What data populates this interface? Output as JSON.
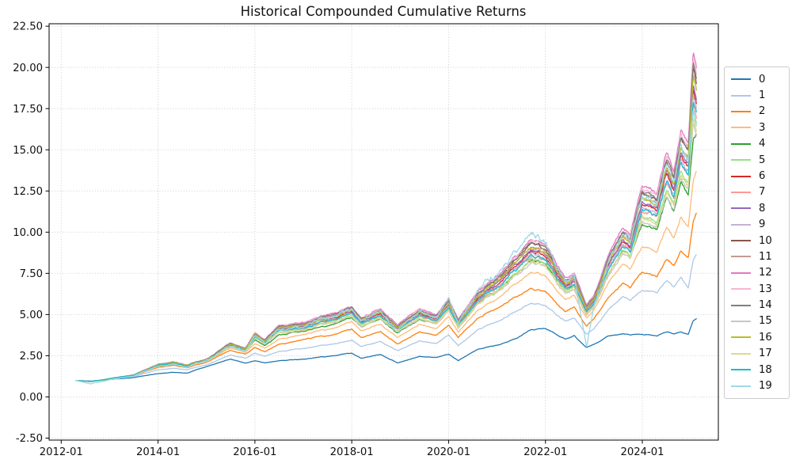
{
  "title": "Historical Compounded Cumulative Returns",
  "chart_data": {
    "type": "line",
    "title": "Historical Compounded Cumulative Returns",
    "xlabel": "",
    "ylabel": "",
    "grid": "dotted",
    "grid_color": "#c8c8c8",
    "spine_color": "#000000",
    "background_color": "#ffffff",
    "legend_position": "outside-right",
    "legend_labels": [
      "0",
      "1",
      "2",
      "3",
      "4",
      "5",
      "6",
      "7",
      "8",
      "9",
      "10",
      "11",
      "12",
      "13",
      "14",
      "15",
      "16",
      "17",
      "18",
      "19"
    ],
    "x_ticks": [
      {
        "label": "2012-01",
        "year": 2012
      },
      {
        "label": "2014-01",
        "year": 2014
      },
      {
        "label": "2016-01",
        "year": 2016
      },
      {
        "label": "2018-01",
        "year": 2018
      },
      {
        "label": "2020-01",
        "year": 2020
      },
      {
        "label": "2022-01",
        "year": 2022
      },
      {
        "label": "2024-01",
        "year": 2024
      }
    ],
    "y_ticks": [
      {
        "label": "-2.50",
        "value": -2.5
      },
      {
        "label": "0.00",
        "value": 0.0
      },
      {
        "label": "2.50",
        "value": 2.5
      },
      {
        "label": "5.00",
        "value": 5.0
      },
      {
        "label": "7.50",
        "value": 7.5
      },
      {
        "label": "10.00",
        "value": 10.0
      },
      {
        "label": "12.50",
        "value": 12.5
      },
      {
        "label": "15.00",
        "value": 15.0
      },
      {
        "label": "17.50",
        "value": 17.5
      },
      {
        "label": "20.00",
        "value": 20.0
      },
      {
        "label": "22.50",
        "value": 22.5
      }
    ],
    "xlim_years": [
      2011.75,
      2025.57
    ],
    "ylim": [
      -2.62,
      22.65
    ],
    "data_start_year": 2012.3,
    "data_end_year": 2025.12,
    "time_grid_years": [
      2012.3,
      2012.6,
      2013.0,
      2013.5,
      2014.0,
      2014.3,
      2014.6,
      2015.0,
      2015.5,
      2015.8,
      2016.0,
      2016.2,
      2016.5,
      2017.0,
      2017.5,
      2018.0,
      2018.2,
      2018.6,
      2018.95,
      2019.4,
      2019.75,
      2020.0,
      2020.2,
      2020.6,
      2021.0,
      2021.4,
      2021.7,
      2022.0,
      2022.4,
      2022.6,
      2022.85,
      2023.0,
      2023.3,
      2023.6,
      2023.75,
      2024.0,
      2024.3,
      2024.5,
      2024.65,
      2024.8,
      2024.95,
      2025.05,
      2025.12
    ],
    "series": [
      {
        "label": "0",
        "color": "#1f77b4",
        "volatility": 0.01,
        "end_value": 4.7,
        "values": [
          1.0,
          0.97,
          1.05,
          1.18,
          1.42,
          1.5,
          1.45,
          1.85,
          2.3,
          2.05,
          2.2,
          2.05,
          2.2,
          2.3,
          2.45,
          2.65,
          2.35,
          2.55,
          2.05,
          2.45,
          2.4,
          2.6,
          2.2,
          2.9,
          3.15,
          3.55,
          4.1,
          4.15,
          3.5,
          3.7,
          3.0,
          3.15,
          3.7,
          3.85,
          3.75,
          3.8,
          3.7,
          3.95,
          3.85,
          3.95,
          3.8,
          4.6,
          4.7
        ]
      },
      {
        "label": "1",
        "color": "#aec7e8",
        "volatility": 0.011,
        "end_value": 8.6,
        "values": [
          1.0,
          0.95,
          1.07,
          1.25,
          1.65,
          1.75,
          1.65,
          1.95,
          2.55,
          2.35,
          2.65,
          2.45,
          2.75,
          2.95,
          3.15,
          3.45,
          3.05,
          3.35,
          2.8,
          3.4,
          3.25,
          3.8,
          3.1,
          4.1,
          4.6,
          5.2,
          5.7,
          5.55,
          4.6,
          4.8,
          3.8,
          4.1,
          5.3,
          6.1,
          5.85,
          6.5,
          6.3,
          7.1,
          6.7,
          7.3,
          6.6,
          8.3,
          8.6
        ]
      },
      {
        "label": "2",
        "color": "#ff7f0e",
        "volatility": 0.012,
        "end_value": 11.1,
        "values": [
          1.0,
          0.94,
          1.08,
          1.3,
          1.8,
          1.92,
          1.78,
          2.1,
          2.85,
          2.6,
          3.0,
          2.75,
          3.2,
          3.5,
          3.7,
          4.1,
          3.6,
          3.95,
          3.2,
          3.95,
          3.75,
          4.4,
          3.6,
          4.8,
          5.4,
          6.1,
          6.6,
          6.4,
          5.2,
          5.45,
          4.3,
          4.7,
          6.0,
          6.9,
          6.6,
          7.6,
          7.3,
          8.4,
          8.0,
          8.9,
          8.4,
          10.6,
          11.1
        ]
      },
      {
        "label": "3",
        "color": "#ffbb78",
        "volatility": 0.013,
        "end_value": 13.6,
        "values": [
          1.0,
          0.94,
          1.09,
          1.32,
          1.86,
          1.99,
          1.83,
          2.15,
          2.98,
          2.7,
          3.25,
          2.95,
          3.5,
          3.8,
          4.05,
          4.55,
          4.0,
          4.4,
          3.6,
          4.4,
          4.15,
          4.9,
          3.95,
          5.3,
          6.0,
          6.9,
          7.55,
          7.35,
          5.9,
          6.15,
          4.8,
          5.25,
          6.9,
          8.1,
          7.75,
          9.2,
          8.8,
          10.3,
          9.7,
          11.0,
          10.3,
          13.0,
          13.6
        ]
      },
      {
        "label": "4",
        "color": "#2ca02c",
        "volatility": 0.014,
        "end_value": 15.8,
        "values": [
          1.0,
          0.93,
          1.09,
          1.33,
          1.9,
          2.04,
          1.86,
          2.2,
          3.08,
          2.78,
          3.45,
          3.1,
          3.75,
          4.0,
          4.3,
          4.85,
          4.25,
          4.7,
          3.85,
          4.7,
          4.45,
          5.3,
          4.2,
          5.7,
          6.5,
          7.5,
          8.3,
          8.05,
          6.4,
          6.7,
          5.1,
          5.6,
          7.5,
          8.9,
          8.5,
          10.6,
          10.1,
          12.1,
          11.3,
          13.1,
          12.2,
          15.5,
          15.8
        ]
      },
      {
        "label": "5",
        "color": "#98df8a",
        "volatility": 0.018,
        "derived_from": "12",
        "exponent": 0.94,
        "end_value": 16.4
      },
      {
        "label": "6",
        "color": "#d62728",
        "volatility": 0.017,
        "derived_from": "12",
        "exponent": 0.964,
        "end_value": 17.6
      },
      {
        "label": "7",
        "color": "#ff9896",
        "volatility": 0.019,
        "derived_from": "12",
        "exponent": 0.95,
        "end_value": 16.9
      },
      {
        "label": "8",
        "color": "#9467bd",
        "volatility": 0.016,
        "derived_from": "12",
        "exponent": 0.969,
        "end_value": 17.9
      },
      {
        "label": "9",
        "color": "#c5b0d5",
        "volatility": 0.018,
        "derived_from": "12",
        "exponent": 0.957,
        "end_value": 17.3
      },
      {
        "label": "10",
        "color": "#8c564b",
        "volatility": 0.015,
        "derived_from": "12",
        "exponent": 0.987,
        "end_value": 18.9
      },
      {
        "label": "11",
        "color": "#c49c94",
        "volatility": 0.017,
        "derived_from": "12",
        "exponent": 0.979,
        "end_value": 18.4
      },
      {
        "label": "12",
        "color": "#e377c2",
        "volatility": 0.016,
        "end_value": 19.6,
        "peak_value": 20.7,
        "values": [
          1.0,
          0.93,
          1.1,
          1.35,
          2.0,
          2.15,
          1.95,
          2.3,
          3.3,
          2.95,
          3.9,
          3.45,
          4.35,
          4.55,
          4.95,
          5.5,
          4.8,
          5.3,
          4.35,
          5.35,
          5.0,
          6.0,
          4.7,
          6.4,
          7.4,
          8.6,
          9.6,
          9.3,
          7.2,
          7.5,
          5.6,
          6.1,
          8.6,
          10.3,
          9.8,
          12.9,
          12.3,
          14.8,
          13.8,
          16.3,
          15.4,
          20.7,
          19.6
        ]
      },
      {
        "label": "13",
        "color": "#f7b6d2",
        "volatility": 0.018,
        "derived_from": "12",
        "exponent": 0.994,
        "end_value": 19.3
      },
      {
        "label": "14",
        "color": "#7f7f7f",
        "volatility": 0.015,
        "derived_from": "12",
        "exponent": 0.99,
        "end_value": 19.0
      },
      {
        "label": "15",
        "color": "#c7c7c7",
        "volatility": 0.019,
        "derived_from": "12",
        "exponent": 0.928,
        "end_value": 15.8
      },
      {
        "label": "16",
        "color": "#bcbd22",
        "volatility": 0.017,
        "derived_from": "12",
        "exponent": 0.975,
        "end_value": 18.2
      },
      {
        "label": "17",
        "color": "#dbdb8d",
        "volatility": 0.02,
        "derived_from": "12",
        "exponent": 0.934,
        "end_value": 16.1
      },
      {
        "label": "18",
        "color": "#17becf",
        "volatility": 0.018,
        "derived_from": "12",
        "exponent": 0.952,
        "end_value": 17.0
      },
      {
        "label": "19",
        "color": "#9edae5",
        "volatility": 0.035,
        "end_value": 16.2,
        "values": [
          1.0,
          0.8,
          1.02,
          1.28,
          1.9,
          2.05,
          1.82,
          2.2,
          3.1,
          2.75,
          3.7,
          3.25,
          4.15,
          4.35,
          4.75,
          5.3,
          4.55,
          5.1,
          4.05,
          5.15,
          4.8,
          6.2,
          4.4,
          6.6,
          7.6,
          8.9,
          10.0,
          9.4,
          7.0,
          7.4,
          3.0,
          5.4,
          8.2,
          9.9,
          9.3,
          12.2,
          11.5,
          14.0,
          12.9,
          15.4,
          14.3,
          17.3,
          16.2
        ]
      }
    ]
  }
}
